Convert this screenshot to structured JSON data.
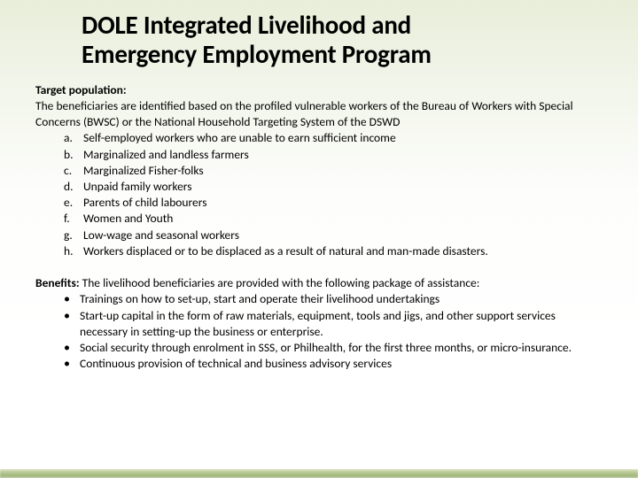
{
  "title_line1": "DOLE Integrated Livelihood and",
  "title_line2": "Emergency Employment Program",
  "target": {
    "label": "Target population:",
    "intro": "The beneficiaries are identified based on the profiled vulnerable workers of the Bureau of Workers with Special Concerns (BWSC) or the National Household Targeting System of the DSWD",
    "items": [
      {
        "marker": "a.",
        "text": "Self-employed workers who are unable to earn sufficient income"
      },
      {
        "marker": "b.",
        "text": "Marginalized and landless farmers"
      },
      {
        "marker": "c.",
        "text": "Marginalized Fisher-folks"
      },
      {
        "marker": "d.",
        "text": "Unpaid family workers"
      },
      {
        "marker": "e.",
        "text": "Parents of child labourers"
      },
      {
        "marker": "f.",
        "text": "Women and Youth"
      },
      {
        "marker": "g.",
        "text": " Low-wage and seasonal workers"
      },
      {
        "marker": "h.",
        "text": " Workers displaced or to be displaced as a result of natural and man-made disasters."
      }
    ]
  },
  "benefits": {
    "label": "Benefits:",
    "intro": " The livelihood beneficiaries are provided with the following package of assistance:",
    "items": [
      "Trainings on how to set-up, start and operate their livelihood undertakings",
      "Start-up capital in the form of raw materials, equipment, tools and jigs, and other support services necessary in setting-up the business or enterprise.",
      "Social security through enrolment in SSS, or Philhealth, for the first three months, or micro-insurance.",
      "Continuous provision of technical and business advisory services"
    ]
  },
  "style": {
    "title_fontsize": 29,
    "body_fontsize": 13.5,
    "text_color": "#000000",
    "bg_gradient_top": "#e8eed9",
    "bg_gradient_bottom": "#ffffff",
    "bottom_bar_color": "#8fa768"
  }
}
